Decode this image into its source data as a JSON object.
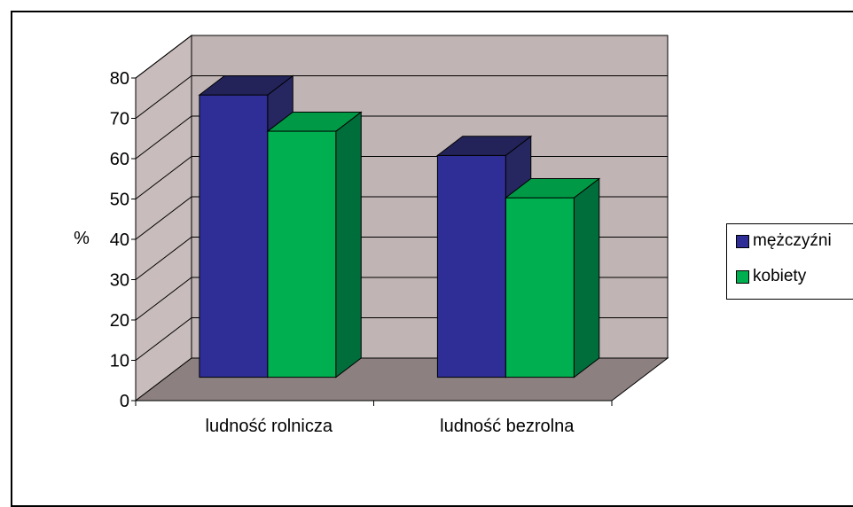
{
  "colors": {
    "back_wall": "#c0b4b4",
    "side_wall": "#c8bcbc",
    "floor": "#8c8080",
    "grid": "#000000"
  },
  "chart_data": {
    "type": "bar",
    "ylabel": "%",
    "ylim": [
      0,
      80
    ],
    "yticks": [
      0,
      10,
      20,
      30,
      40,
      50,
      60,
      70,
      80
    ],
    "categories": [
      "ludność rolnicza",
      "ludność bezrolna"
    ],
    "series": [
      {
        "name": "mężczyźni",
        "values": [
          70,
          55
        ],
        "color": "#2e2e96",
        "side": "#262660",
        "top": "#23235a"
      },
      {
        "name": "kobiety",
        "values": [
          61,
          44.5
        ],
        "color": "#00b050",
        "side": "#006e3a",
        "top": "#009a46"
      }
    ],
    "legend_position": "right",
    "grid": true
  }
}
